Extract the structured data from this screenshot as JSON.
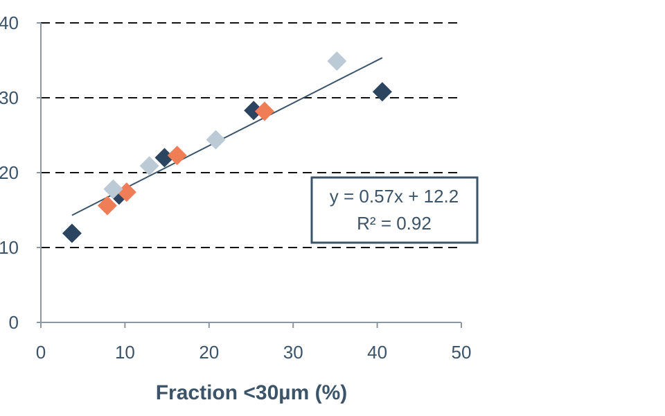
{
  "chart_data": {
    "type": "scatter",
    "xlabel": "Fraction <30µm (%)",
    "ylabel": "",
    "xlim": [
      0,
      50
    ],
    "ylim": [
      0,
      40
    ],
    "x_ticks": [
      "0",
      "10",
      "20",
      "30",
      "40",
      "50"
    ],
    "y_ticks": [
      "0",
      "10",
      "20",
      "30",
      "40"
    ],
    "grid": "horizontal dashed",
    "series": [
      {
        "color": "#2b4560",
        "points": [
          [
            3.7,
            11.9
          ],
          [
            9.3,
            17.0
          ],
          [
            14.7,
            22.0
          ],
          [
            25.3,
            28.3
          ],
          [
            40.6,
            30.8
          ]
        ]
      },
      {
        "color": "#ef7e56",
        "points": [
          [
            7.9,
            15.6
          ],
          [
            10.2,
            17.4
          ],
          [
            16.2,
            22.3
          ],
          [
            26.6,
            28.2
          ]
        ]
      },
      {
        "color": "#bccad5",
        "points": [
          [
            8.6,
            17.8
          ],
          [
            12.9,
            20.9
          ],
          [
            20.8,
            24.4
          ],
          [
            35.2,
            34.9
          ]
        ]
      }
    ],
    "trendline": {
      "slope": 0.57,
      "intercept": 12.2,
      "x_range": [
        3.7,
        40.6
      ],
      "color": "#3b5469"
    },
    "annotation": {
      "line1": "y = 0.57x + 12.2",
      "line2": "R² = 0.92"
    }
  }
}
